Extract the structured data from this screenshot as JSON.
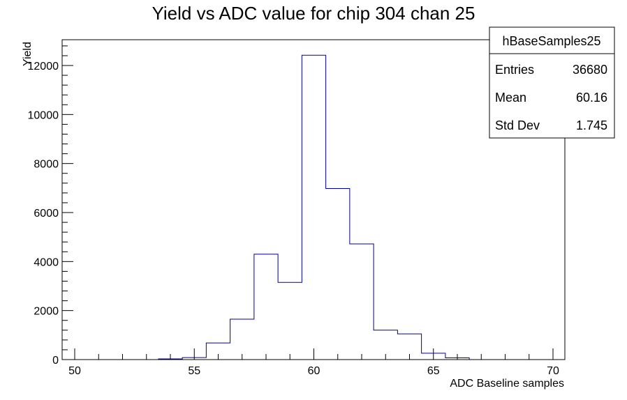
{
  "chart_data": {
    "type": "bar",
    "title": "Yield vs ADC value for chip 304 chan 25",
    "xlabel": "ADC Baseline samples",
    "ylabel": "Yield",
    "xlim": [
      50,
      70
    ],
    "ylim": [
      0,
      13000
    ],
    "x_ticks": [
      50,
      55,
      60,
      65,
      70
    ],
    "y_ticks": [
      0,
      2000,
      4000,
      6000,
      8000,
      10000,
      12000
    ],
    "bin_width": 1,
    "bin_edges": [
      53.5,
      54.5,
      55.5,
      56.5,
      57.5,
      58.5,
      59.5,
      60.5,
      61.5,
      62.5,
      63.5,
      64.5,
      65.5,
      66.5
    ],
    "values": [
      30,
      80,
      680,
      1650,
      4300,
      3150,
      12420,
      6980,
      4720,
      1200,
      1050,
      260,
      70
    ],
    "series_color": "#00008b",
    "grid": false,
    "stats_box": {
      "name": "hBaseSamples25",
      "rows": [
        {
          "label": "Entries",
          "value": "36680"
        },
        {
          "label": "Mean",
          "value": "60.16"
        },
        {
          "label": "Std Dev",
          "value": "1.745"
        }
      ]
    }
  }
}
